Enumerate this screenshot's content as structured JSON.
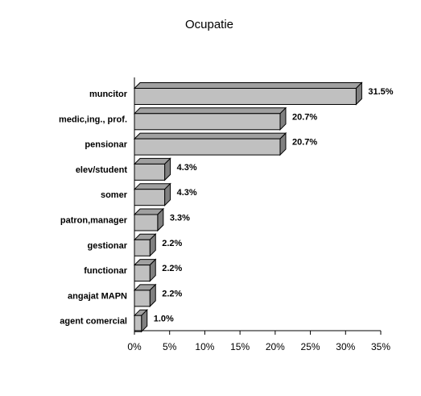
{
  "chart_data": {
    "type": "bar",
    "orientation": "horizontal",
    "title": "Ocupatie",
    "categories": [
      "muncitor",
      "medic,ing., prof.",
      "pensionar",
      "elev/student",
      "somer",
      "patron,manager",
      "gestionar",
      "functionar",
      "angajat MAPN",
      "agent comercial"
    ],
    "values": [
      31.5,
      20.7,
      20.7,
      4.3,
      4.3,
      3.3,
      2.2,
      2.2,
      2.2,
      1.0
    ],
    "value_labels": [
      "31.5%",
      "20.7%",
      "20.7%",
      "4.3%",
      "4.3%",
      "3.3%",
      "2.2%",
      "2.2%",
      "2.2%",
      "1.0%"
    ],
    "xlim": [
      0,
      35
    ],
    "x_ticks": [
      0,
      5,
      10,
      15,
      20,
      25,
      30,
      35
    ],
    "x_tick_labels": [
      "0%",
      "5%",
      "10%",
      "15%",
      "20%",
      "25%",
      "30%",
      "35%"
    ],
    "grid": false,
    "legend": "none",
    "style_3d": true,
    "colors": {
      "bar_front": "#c0c0c0",
      "bar_top": "#a0a0a0",
      "bar_side": "#808080",
      "outline": "#000000"
    }
  }
}
